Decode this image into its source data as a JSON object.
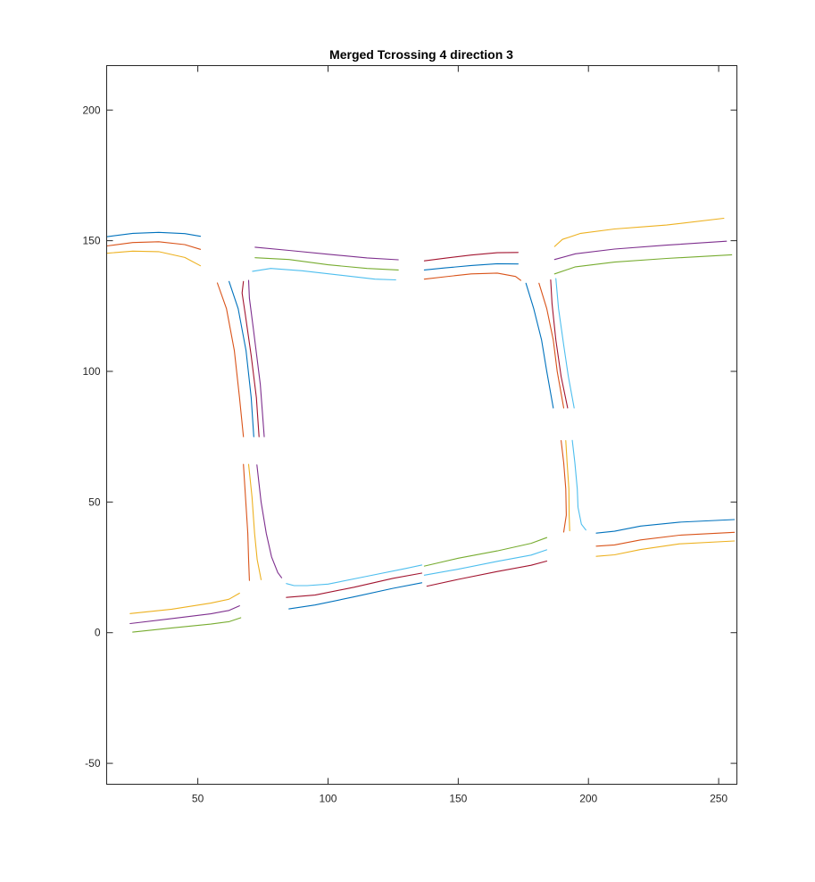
{
  "chart_data": {
    "type": "line",
    "title": "Merged Tcrossing 4 direction 3",
    "xlabel": "",
    "ylabel": "",
    "xlim": [
      15,
      257
    ],
    "ylim": [
      -58,
      217
    ],
    "xticks": [
      50,
      100,
      150,
      200,
      250
    ],
    "yticks": [
      -50,
      0,
      50,
      100,
      150,
      200
    ],
    "xtick_labels": [
      "50",
      "100",
      "150",
      "200",
      "250"
    ],
    "ytick_labels": [
      "-50",
      "0",
      "50",
      "100",
      "150",
      "200"
    ],
    "grid": false,
    "legend": "none",
    "colors": {
      "blue": "#0072BD",
      "orange": "#D95319",
      "yellow": "#EDB120",
      "purple": "#7E2F8E",
      "green": "#77AC30",
      "cyan": "#4DBEEE",
      "red": "#A2142F"
    },
    "series": [
      {
        "color": "blue",
        "x": [
          15,
          25,
          35,
          45,
          51
        ],
        "y": [
          151.5,
          152.8,
          153.2,
          152.7,
          151.7
        ]
      },
      {
        "color": "orange",
        "x": [
          15,
          25,
          35,
          45,
          51
        ],
        "y": [
          148,
          149.3,
          149.6,
          148.5,
          146.7
        ]
      },
      {
        "color": "yellow",
        "x": [
          15,
          25,
          35,
          45,
          51
        ],
        "y": [
          145.2,
          146,
          145.8,
          143.6,
          140.4
        ]
      },
      {
        "color": "purple",
        "x": [
          72,
          85,
          100,
          115,
          127
        ],
        "y": [
          147.5,
          146.3,
          144.8,
          143.4,
          142.7
        ]
      },
      {
        "color": "green",
        "x": [
          72,
          85,
          100,
          115,
          127
        ],
        "y": [
          143.5,
          142.8,
          140.8,
          139.4,
          138.8
        ]
      },
      {
        "color": "cyan",
        "x": [
          71,
          78,
          90,
          105,
          118,
          126
        ],
        "y": [
          138.3,
          139.4,
          138.5,
          136.8,
          135.3,
          135
        ]
      },
      {
        "color": "red",
        "x": [
          137,
          145,
          155,
          165,
          173
        ],
        "y": [
          142.3,
          143.3,
          144.5,
          145.4,
          145.5
        ]
      },
      {
        "color": "blue",
        "x": [
          137,
          145,
          155,
          165,
          173
        ],
        "y": [
          138.8,
          139.6,
          140.5,
          141.2,
          141.1
        ]
      },
      {
        "color": "orange",
        "x": [
          137,
          145,
          155,
          165,
          172,
          174
        ],
        "y": [
          135.3,
          136.2,
          137.3,
          137.6,
          136.3,
          134.8
        ]
      },
      {
        "color": "yellow",
        "x": [
          187,
          190,
          197,
          210,
          230,
          252
        ],
        "y": [
          147.8,
          150.5,
          152.8,
          154.5,
          156,
          158.6
        ]
      },
      {
        "color": "purple",
        "x": [
          187,
          195,
          210,
          230,
          253
        ],
        "y": [
          142.8,
          145,
          146.8,
          148.3,
          149.8
        ]
      },
      {
        "color": "green",
        "x": [
          187,
          195,
          210,
          230,
          255
        ],
        "y": [
          137.3,
          140,
          141.8,
          143.2,
          144.6
        ]
      },
      {
        "color": "orange",
        "x": [
          57.5,
          61,
          64,
          66,
          67.5
        ],
        "y": [
          133.8,
          124,
          108,
          90,
          75
        ]
      },
      {
        "color": "blue",
        "x": [
          62,
          65.5,
          68.5,
          70.5,
          71.5
        ],
        "y": [
          134.4,
          124,
          108,
          90,
          75
        ]
      },
      {
        "color": "red",
        "x": [
          67.5,
          67,
          68.2,
          70.5,
          72.5,
          73.5
        ],
        "y": [
          134.4,
          130,
          122,
          106,
          90,
          75
        ]
      },
      {
        "color": "purple",
        "x": [
          69.5,
          69.8,
          71.5,
          74,
          75.5
        ],
        "y": [
          134.8,
          128,
          115,
          95,
          75
        ]
      },
      {
        "color": "orange",
        "x": [
          67.5,
          68.3,
          69.2,
          69.5,
          69.8
        ],
        "y": [
          64.4,
          52,
          38,
          28,
          20
        ]
      },
      {
        "color": "yellow",
        "x": [
          69.5,
          70.8,
          71.8,
          72.8,
          74.3
        ],
        "y": [
          64.4,
          52,
          38,
          28,
          20.3
        ]
      },
      {
        "color": "purple",
        "x": [
          72.7,
          74.3,
          76.3,
          78.3,
          80.7,
          82.2
        ],
        "y": [
          64.2,
          50,
          38,
          29,
          23,
          21
        ]
      },
      {
        "color": "blue",
        "x": [
          176,
          179,
          182,
          184,
          186.5
        ],
        "y": [
          133.7,
          124,
          112,
          100,
          86
        ]
      },
      {
        "color": "orange",
        "x": [
          181,
          184,
          186.5,
          188,
          190.5
        ],
        "y": [
          133.7,
          124,
          112,
          100,
          86
        ]
      },
      {
        "color": "red",
        "x": [
          185.5,
          186,
          187.5,
          189.5,
          192
        ],
        "y": [
          135,
          126,
          112,
          98,
          86
        ]
      },
      {
        "color": "cyan",
        "x": [
          187.5,
          188.5,
          190.5,
          192.3,
          194.5
        ],
        "y": [
          135.5,
          124,
          110,
          98,
          86
        ]
      },
      {
        "color": "orange",
        "x": [
          189.5,
          190.5,
          191.3,
          191.5,
          190.5
        ],
        "y": [
          73.5,
          65,
          55,
          45,
          38.5
        ]
      },
      {
        "color": "yellow",
        "x": [
          191.3,
          191.8,
          192.5,
          192.6,
          192.8
        ],
        "y": [
          73.5,
          65,
          55,
          45,
          39
        ]
      },
      {
        "color": "cyan",
        "x": [
          193.8,
          194.8,
          195.7,
          196,
          197.3,
          199
        ],
        "y": [
          73.6,
          65,
          55,
          48,
          41.5,
          39.3
        ]
      },
      {
        "color": "blue",
        "x": [
          203,
          210,
          220,
          235,
          256
        ],
        "y": [
          38.1,
          38.8,
          40.8,
          42.3,
          43.3
        ]
      },
      {
        "color": "orange",
        "x": [
          203,
          210,
          220,
          235,
          256
        ],
        "y": [
          33.1,
          33.6,
          35.5,
          37.3,
          38.4
        ]
      },
      {
        "color": "yellow",
        "x": [
          203,
          210,
          220,
          235,
          256
        ],
        "y": [
          29.2,
          29.8,
          31.8,
          34,
          35.1
        ]
      },
      {
        "color": "yellow",
        "x": [
          24,
          40,
          55,
          62,
          66
        ],
        "y": [
          7.3,
          9,
          11.3,
          12.8,
          15.1
        ]
      },
      {
        "color": "purple",
        "x": [
          24,
          40,
          55,
          62,
          66
        ],
        "y": [
          3.5,
          5.4,
          7.2,
          8.5,
          10.3
        ]
      },
      {
        "color": "green",
        "x": [
          25,
          40,
          55,
          62,
          66.5
        ],
        "y": [
          0.2,
          1.8,
          3.3,
          4.2,
          5.7
        ]
      },
      {
        "color": "cyan",
        "x": [
          84,
          87,
          92,
          100,
          115,
          130,
          136
        ],
        "y": [
          18.8,
          18,
          18,
          18.6,
          21.6,
          24.6,
          25.9
        ]
      },
      {
        "color": "red",
        "x": [
          84,
          95,
          110,
          125,
          136
        ],
        "y": [
          13.5,
          14.4,
          17.4,
          20.8,
          22.8
        ]
      },
      {
        "color": "blue",
        "x": [
          85,
          95,
          110,
          125,
          136
        ],
        "y": [
          9.1,
          10.6,
          13.7,
          17,
          19.1
        ]
      },
      {
        "color": "green",
        "x": [
          137,
          150,
          165,
          178,
          184
        ],
        "y": [
          25.5,
          28.5,
          31.3,
          34.2,
          36.4
        ]
      },
      {
        "color": "cyan",
        "x": [
          137,
          150,
          165,
          178,
          184
        ],
        "y": [
          22,
          24.3,
          27.3,
          29.7,
          31.7
        ]
      },
      {
        "color": "red",
        "x": [
          138,
          150,
          165,
          178,
          184
        ],
        "y": [
          17.8,
          20.4,
          23.4,
          25.8,
          27.4
        ]
      }
    ]
  }
}
